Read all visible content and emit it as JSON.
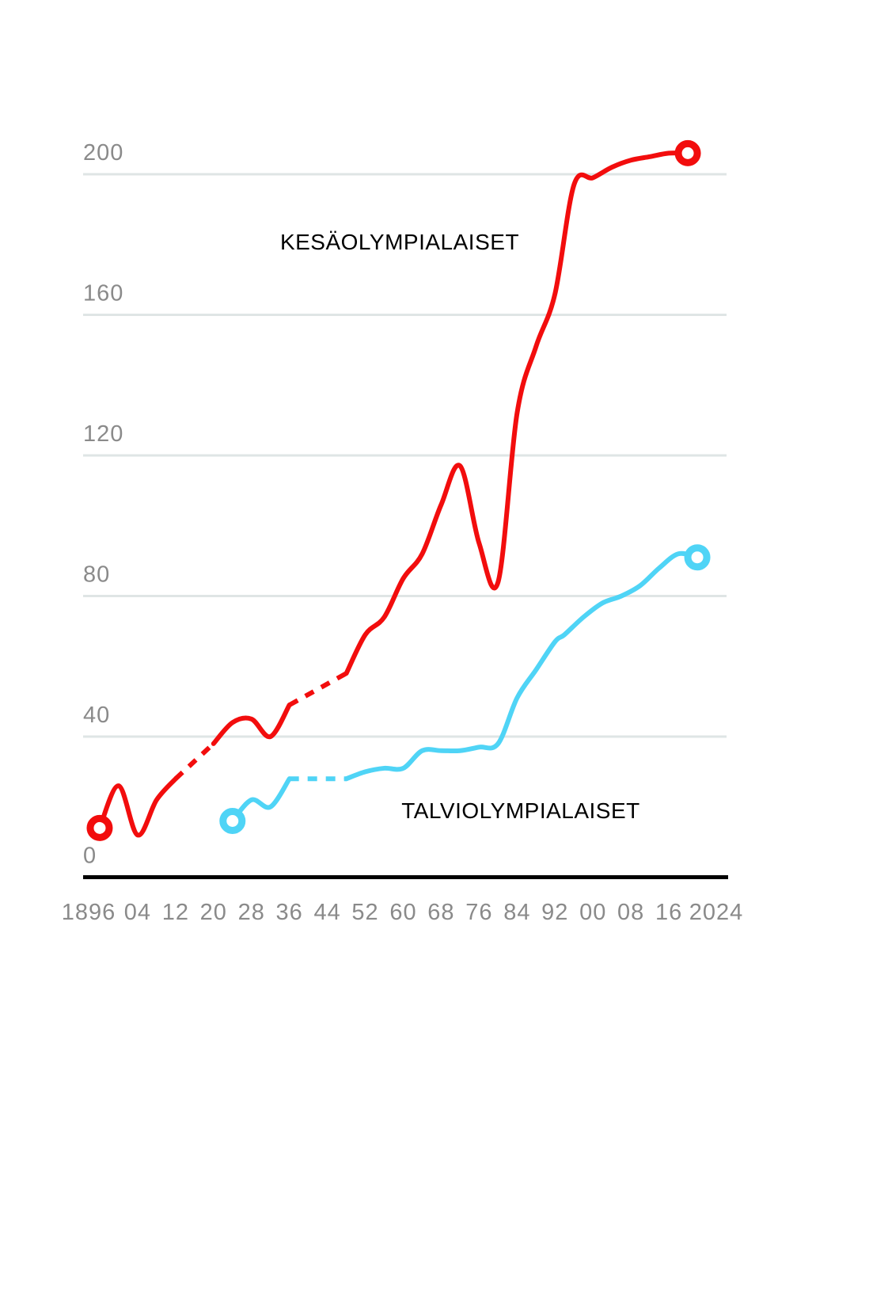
{
  "chart_data": {
    "type": "line",
    "x": [
      1896,
      1900,
      1904,
      1908,
      1912,
      1916,
      1920,
      1924,
      1928,
      1932,
      1936,
      1940,
      1944,
      1948,
      1952,
      1956,
      1960,
      1964,
      1968,
      1972,
      1976,
      1980,
      1984,
      1988,
      1992,
      1994,
      1996,
      1998,
      2000,
      2002,
      2004,
      2006,
      2008,
      2010,
      2012,
      2014,
      2016,
      2018,
      2020,
      2022
    ],
    "series": [
      {
        "name": "KESÄOLYMPIALAISET",
        "color": "#f20d0d",
        "values": [
          14,
          26,
          12,
          22,
          28,
          null,
          38,
          44,
          45,
          40,
          49,
          null,
          null,
          58,
          69,
          74,
          85,
          92,
          106,
          117,
          95,
          84,
          132,
          151,
          166,
          null,
          197,
          null,
          199,
          null,
          202,
          null,
          204,
          null,
          205,
          null,
          206,
          null,
          206,
          null
        ]
      },
      {
        "name": "TALVIOLYMPIALAISET",
        "color": "#4fd4f6",
        "values": [
          null,
          null,
          null,
          null,
          null,
          null,
          null,
          16,
          22,
          20,
          28,
          null,
          null,
          28,
          30,
          31,
          31,
          36,
          36,
          36,
          37,
          38,
          51,
          59,
          67,
          69,
          null,
          74,
          null,
          78,
          null,
          80,
          null,
          83,
          null,
          88,
          null,
          92,
          null,
          91
        ]
      }
    ],
    "xlim": [
      1892.5,
      2028.5
    ],
    "xticks": [
      1896,
      {
        "value": 1904,
        "label": "04"
      },
      {
        "value": 1912,
        "label": "12"
      },
      {
        "value": 1920,
        "label": "20"
      },
      {
        "value": 1928,
        "label": "28"
      },
      {
        "value": 1936,
        "label": "36"
      },
      {
        "value": 1944,
        "label": "44"
      },
      {
        "value": 1952,
        "label": "52"
      },
      {
        "value": 1960,
        "label": "60"
      },
      {
        "value": 1968,
        "label": "68"
      },
      {
        "value": 1976,
        "label": "76"
      },
      {
        "value": 1984,
        "label": "84"
      },
      {
        "value": 1992,
        "label": "92"
      },
      {
        "value": 2000,
        "label": "00"
      },
      {
        "value": 2008,
        "label": "08"
      },
      {
        "value": 2016,
        "label": "16"
      },
      2024
    ],
    "ylim": [
      0,
      207
    ],
    "yticks": [
      0,
      40,
      80,
      120,
      160,
      200
    ],
    "grid": true
  }
}
